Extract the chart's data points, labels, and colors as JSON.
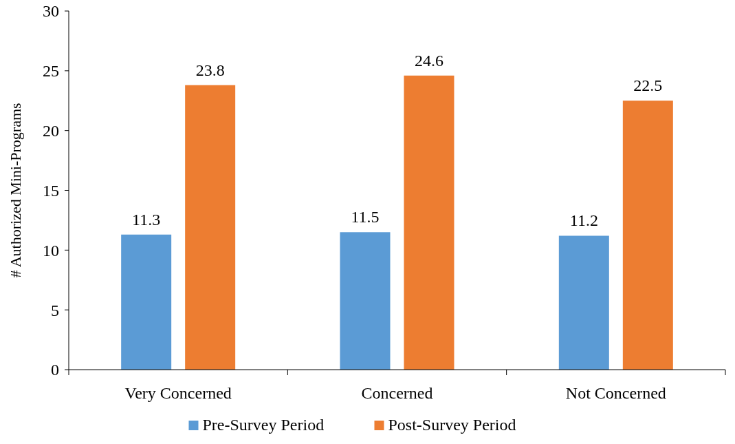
{
  "chart_data": {
    "type": "bar",
    "ylabel": "# Authorized Mini-Programs",
    "categories": [
      "Very Concerned",
      "Concerned",
      "Not Concerned"
    ],
    "series": [
      {
        "name": "Pre-Survey Period",
        "color": "#5b9bd5",
        "values": [
          11.3,
          11.5,
          11.2
        ]
      },
      {
        "name": "Post-Survey Period",
        "color": "#ed7d31",
        "values": [
          23.8,
          24.6,
          22.5
        ]
      }
    ],
    "ylim": [
      0,
      30
    ],
    "yticks": [
      0,
      5,
      10,
      15,
      20,
      25,
      30
    ],
    "data_labels": true,
    "grid": false,
    "legend": "bottom"
  }
}
